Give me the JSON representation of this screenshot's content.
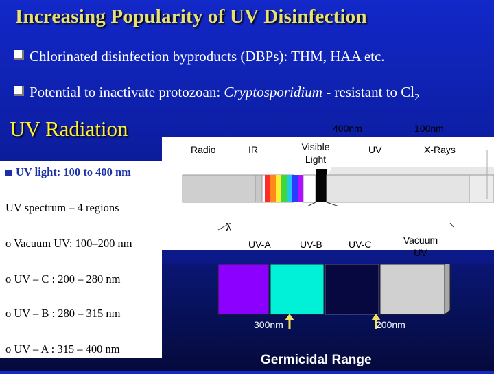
{
  "title": "Increasing Popularity of UV Disinfection",
  "bullets": [
    {
      "text": "Chlorinated disinfection byproducts (DBPs): THM, HAA etc."
    },
    {
      "text_before": "Potential to inactivate protozoan: ",
      "text_italic": "Cryptosporidium",
      "text_after": " - resistant to Cl",
      "sub": "2"
    }
  ],
  "uv_heading": "UV Radiation",
  "left_panel": {
    "uv_light": "UV light: 100 to 400 nm",
    "spectrum": "UV spectrum – 4 regions",
    "regions": [
      "o Vacuum UV: 100–200 nm",
      "o UV – C : 200 – 280 nm",
      "o UV – B : 280 – 315 nm",
      "o UV – A : 315 – 400 nm"
    ]
  },
  "spectrum": {
    "top_labels": {
      "nm400": "400nm",
      "nm100": "100nm"
    },
    "bands": {
      "radio": "Radio",
      "ir": "IR",
      "visible": "Visible Light",
      "uv": "UV",
      "xrays": "X-Rays"
    },
    "lambda": "λ",
    "sub_bands": [
      "UV-A",
      "UV-B",
      "UV-C",
      "Vacuum UV"
    ],
    "markers": {
      "nm300": "300nm",
      "nm200": "200nm"
    },
    "range_label": "Germicidal Range",
    "colors": {
      "radio": "#d7d7d7",
      "ir": "#ffffff",
      "uva": "#8b00ff",
      "uvb": "#00f0d8",
      "uvc": "#080840",
      "vuv": "#d0d0d0",
      "green": "#3ed83a"
    }
  }
}
